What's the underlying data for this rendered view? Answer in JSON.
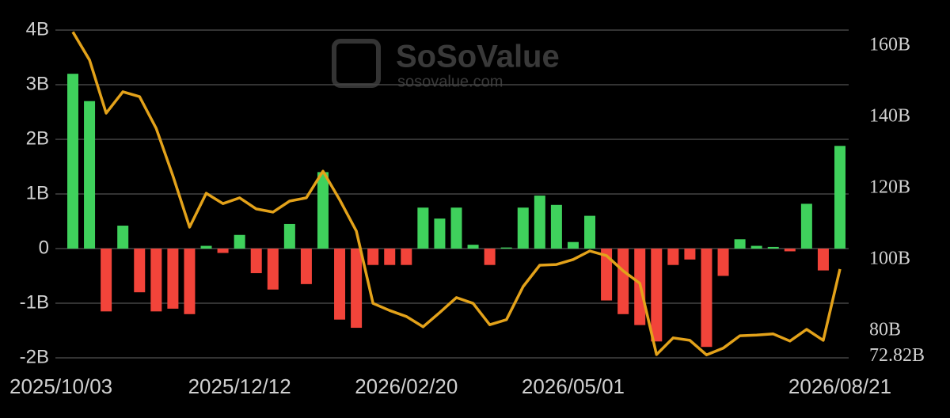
{
  "chart_data": {
    "type": "bar",
    "watermark": "SoSoValue",
    "watermark_url": "sosovalue.com",
    "categories": [
      "2025/10/03",
      null,
      null,
      null,
      null,
      null,
      null,
      null,
      null,
      null,
      "2025/12/12",
      null,
      null,
      null,
      null,
      null,
      null,
      null,
      null,
      null,
      "2026/02/20",
      null,
      null,
      null,
      null,
      null,
      null,
      null,
      null,
      null,
      "2026/05/01",
      null,
      null,
      null,
      null,
      null,
      null,
      null,
      null,
      null,
      null,
      null,
      null,
      null,
      null,
      null,
      "2026/08/21"
    ],
    "series": [
      {
        "type": "bar",
        "axis": "y",
        "color": "#3fd15c",
        "negative_color": "#f2443a",
        "values": [
          3.2,
          2.7,
          -1.15,
          0.42,
          -0.8,
          -1.15,
          -1.1,
          -1.2,
          0.05,
          -0.08,
          0.25,
          -0.45,
          -0.75,
          0.45,
          -0.65,
          1.4,
          -1.3,
          -1.45,
          -0.3,
          -0.3,
          -0.3,
          0.75,
          0.55,
          0.75,
          0.07,
          -0.3,
          0.02,
          0.75,
          0.97,
          0.8,
          0.12,
          0.6,
          -0.95,
          -1.2,
          -1.4,
          -1.7,
          -0.3,
          -0.2,
          -1.8,
          -0.5,
          0.17,
          0.05,
          0.03,
          -0.05,
          0.82,
          -0.4,
          1.88
        ]
      },
      {
        "type": "line",
        "axis": "y2",
        "color": "#e3a21a",
        "values": [
          163.5,
          155.6,
          140.7,
          146.7,
          145.3,
          136.4,
          123.1,
          108.7,
          118.2,
          115.3,
          116.9,
          113.8,
          112.9,
          116,
          116.9,
          124.4,
          116.4,
          107.6,
          87.3,
          85.3,
          83.6,
          80.7,
          84.7,
          88.9,
          87.3,
          81.3,
          82.7,
          92,
          98,
          98.2,
          99.6,
          102,
          100.7,
          96.4,
          92.9,
          72.9,
          77.6,
          76.9,
          72.82,
          74.7,
          78.2,
          78.4,
          78.7,
          76.7,
          80,
          76.9,
          96.9
        ]
      }
    ],
    "ylim": [
      -2,
      4
    ],
    "yticks": [
      {
        "value": -2,
        "label": "-2B"
      },
      {
        "value": -1,
        "label": "-1B"
      },
      0,
      {
        "value": 1,
        "label": "1B"
      },
      {
        "value": 2,
        "label": "2B"
      },
      {
        "value": 3,
        "label": "3B"
      },
      {
        "value": 4,
        "label": "4B"
      }
    ],
    "y2lim": [
      72,
      164
    ],
    "y2ticks": [
      {
        "value": 72.82,
        "label": "72.82B"
      },
      {
        "value": 80,
        "label": "80B"
      },
      {
        "value": 100,
        "label": "100B"
      },
      {
        "value": 120,
        "label": "120B"
      },
      {
        "value": 140,
        "label": "140B"
      },
      {
        "value": 160,
        "label": "160B"
      }
    ],
    "grid": true
  }
}
